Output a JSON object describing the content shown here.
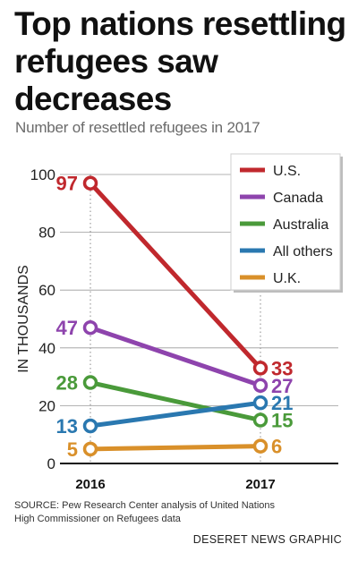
{
  "title": "Top nations resettling refugees saw decreases",
  "subtitle": "Number of resettled refugees in 2017",
  "source": "SOURCE: Pew Research Center analysis of United Nations High Commissioner on Refugees data",
  "credit": "DESERET NEWS GRAPHIC",
  "chart_data": {
    "type": "line",
    "x": [
      "2016",
      "2017"
    ],
    "ylabel": "IN THOUSANDS",
    "ylim": [
      0,
      100
    ],
    "yticks": [
      0,
      20,
      40,
      60,
      80,
      100
    ],
    "grid": true,
    "legend_position": "top-right",
    "series": [
      {
        "name": "U.S.",
        "values": [
          97,
          33
        ],
        "labels": [
          "97",
          "33"
        ],
        "color": "#c0282d"
      },
      {
        "name": "Canada",
        "values": [
          47,
          27
        ],
        "labels": [
          "47",
          "27"
        ],
        "color": "#8e44ad"
      },
      {
        "name": "Australia",
        "values": [
          28,
          15
        ],
        "labels": [
          "28",
          "15"
        ],
        "color": "#4a9a3a"
      },
      {
        "name": "All others",
        "values": [
          13,
          21
        ],
        "labels": [
          "13",
          "21"
        ],
        "color": "#2a78b0"
      },
      {
        "name": "U.K.",
        "values": [
          5,
          6
        ],
        "labels": [
          "5",
          "6"
        ],
        "color": "#d9902a"
      }
    ]
  }
}
